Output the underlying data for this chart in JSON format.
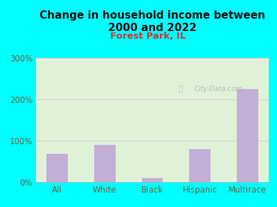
{
  "title": "Change in household income between\n2000 and 2022",
  "subtitle": "Forest Park, IL",
  "categories": [
    "All",
    "White",
    "Black",
    "Hispanic",
    "Multirace"
  ],
  "values": [
    68,
    90,
    10,
    80,
    225
  ],
  "bar_color": "#c3aed6",
  "title_fontsize": 11,
  "title_color": "#111111",
  "subtitle_fontsize": 9.5,
  "subtitle_color": "#cc3333",
  "tick_label_color": "#666644",
  "ylim": [
    0,
    300
  ],
  "yticks": [
    0,
    100,
    200,
    300
  ],
  "ytick_labels": [
    "0%",
    "100%",
    "200%",
    "300%"
  ],
  "background_outer": "#00ffff",
  "background_plot": "#dff2d8",
  "grid_color": "#e8c8c8",
  "watermark": "City-Data.com"
}
